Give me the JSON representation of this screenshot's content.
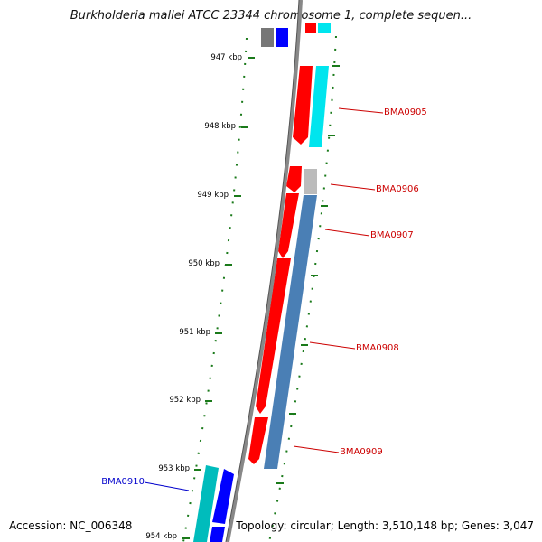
{
  "title": "Burkholderia mallei ATCC 23344 chromosome 1, complete sequen...",
  "footer": {
    "accession": "Accession: NC_006348",
    "topology": "Topology: circular; Length: 3,510,148 bp; Genes: 3,047"
  },
  "ticks": [
    "947 kbp",
    "948 kbp",
    "949 kbp",
    "950 kbp",
    "951 kbp",
    "952 kbp",
    "953 kbp",
    "954 kbp"
  ],
  "gene_labels": [
    {
      "name": "BMA0905",
      "color": "#cc0000"
    },
    {
      "name": "BMA0906",
      "color": "#cc0000"
    },
    {
      "name": "BMA0907",
      "color": "#cc0000"
    },
    {
      "name": "BMA0908",
      "color": "#cc0000"
    },
    {
      "name": "BMA0909",
      "color": "#cc0000"
    },
    {
      "name": "BMA0910",
      "color": "#0000cc"
    }
  ],
  "colors": {
    "backbone": "#888888",
    "tick": "#1a7a1a",
    "forward_cds": "#ff0000",
    "reverse_cds": "#4a7fb5",
    "cyan_feature": "#00e5ee",
    "blue_feature": "#0000ff",
    "grey_feature": "#777777",
    "light_grey_feature": "#bbbbbb",
    "teal_feature": "#00bcbc"
  }
}
